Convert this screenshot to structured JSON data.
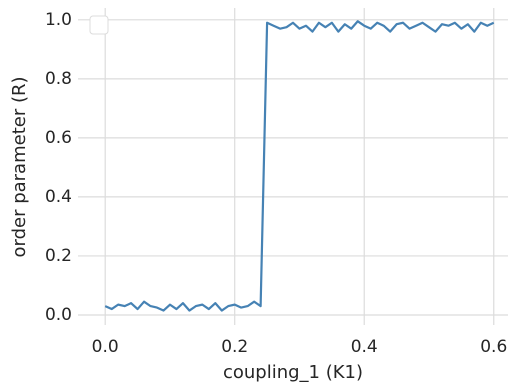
{
  "chart_data": {
    "type": "line",
    "xlabel": "coupling_1 (K1)",
    "ylabel": "order parameter (R)",
    "x": [
      0,
      0.01,
      0.02,
      0.03,
      0.04,
      0.05,
      0.06,
      0.07,
      0.08,
      0.09,
      0.1,
      0.11,
      0.12,
      0.13,
      0.14,
      0.15,
      0.16,
      0.17,
      0.18,
      0.19,
      0.2,
      0.21,
      0.22,
      0.23,
      0.24,
      0.25,
      0.26,
      0.27,
      0.28,
      0.29,
      0.3,
      0.31,
      0.32,
      0.33,
      0.34,
      0.35,
      0.36,
      0.37,
      0.38,
      0.39,
      0.4,
      0.41,
      0.42,
      0.43,
      0.44,
      0.45,
      0.46,
      0.47,
      0.48,
      0.49,
      0.5,
      0.51,
      0.52,
      0.53,
      0.54,
      0.55,
      0.56,
      0.57,
      0.58,
      0.59,
      0.6
    ],
    "series": [
      {
        "color": "#4682b4",
        "values": [
          0.03,
          0.02,
          0.035,
          0.03,
          0.04,
          0.02,
          0.045,
          0.03,
          0.025,
          0.015,
          0.035,
          0.02,
          0.04,
          0.015,
          0.03,
          0.035,
          0.02,
          0.04,
          0.015,
          0.03,
          0.035,
          0.025,
          0.03,
          0.045,
          0.03,
          0.99,
          0.98,
          0.97,
          0.975,
          0.99,
          0.97,
          0.98,
          0.96,
          0.99,
          0.975,
          0.99,
          0.96,
          0.985,
          0.97,
          0.995,
          0.98,
          0.97,
          0.99,
          0.98,
          0.96,
          0.985,
          0.99,
          0.97,
          0.98,
          0.99,
          0.975,
          0.96,
          0.985,
          0.98,
          0.99,
          0.97,
          0.985,
          0.96,
          0.99,
          0.98,
          0.99
        ]
      }
    ],
    "xlim": [
      -0.042,
      0.622
    ],
    "ylim": [
      -0.034,
      1.04
    ],
    "xticks": [
      {
        "value": 0,
        "label": "0.0"
      },
      0.2,
      0.4,
      0.6
    ],
    "yticks": [
      {
        "value": 0,
        "label": "0.0"
      },
      0.2,
      0.4,
      0.6,
      0.8,
      {
        "value": 1,
        "label": "1.0"
      }
    ],
    "grid": true,
    "legend": "upper left"
  }
}
